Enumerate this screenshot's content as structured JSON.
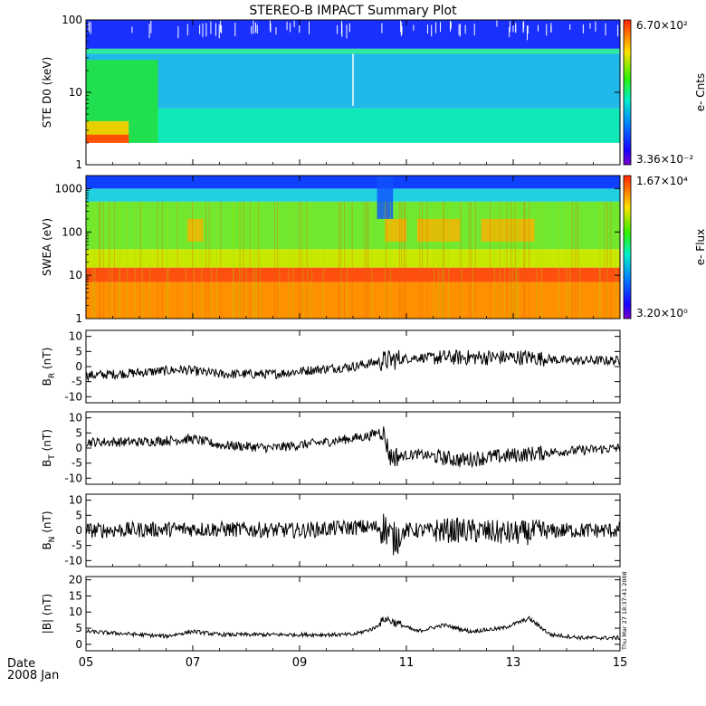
{
  "chart_data": {
    "type": "multi-panel",
    "title": "STEREO-B IMPACT Summary Plot",
    "x_axis": {
      "ticks": [
        "05",
        "07",
        "09",
        "11",
        "13",
        "15"
      ],
      "range_days": [
        "2008-01-05",
        "2008-01-15"
      ],
      "label_line1": "Date",
      "label_line2": "2008 Jan"
    },
    "timestamp": "Thu Mar 27 18:37:41 2008",
    "panels": [
      {
        "id": "ste",
        "type": "heatmap",
        "ylabel": "STE D0 (keV)",
        "yscale": "log",
        "ylim": [
          1,
          100
        ],
        "yticks": [
          "1",
          "10",
          "100"
        ],
        "colorbar_label": "e- Cnts",
        "colorbar_max": "6.70×10²",
        "colorbar_min": "3.36×10⁻²"
      },
      {
        "id": "swea",
        "type": "heatmap",
        "ylabel": "SWEA (eV)",
        "yscale": "log",
        "ylim": [
          1,
          2000
        ],
        "yticks": [
          "1",
          "10",
          "100",
          "1000"
        ],
        "colorbar_label": "e- Flux",
        "colorbar_max": "1.67×10⁴",
        "colorbar_min": "3.20×10⁰"
      },
      {
        "id": "br",
        "type": "line",
        "ylabel": "B",
        "ylabel_sub": "R",
        "ylabel_unit": " (nT)",
        "ylim": [
          -12,
          12
        ],
        "yticks": [
          "-10",
          "-5",
          "0",
          "5",
          "10"
        ],
        "trend": [
          [
            5,
            -3
          ],
          [
            6,
            -2
          ],
          [
            6.8,
            -1
          ],
          [
            7.5,
            -2.5
          ],
          [
            8.5,
            -2.5
          ],
          [
            9.3,
            -1
          ],
          [
            10,
            0
          ],
          [
            10.6,
            2
          ],
          [
            11.2,
            3
          ],
          [
            12,
            3
          ],
          [
            13.3,
            3
          ],
          [
            14,
            2
          ],
          [
            15,
            2
          ]
        ]
      },
      {
        "id": "bt",
        "type": "line",
        "ylabel": "B",
        "ylabel_sub": "T",
        "ylabel_unit": " (nT)",
        "ylim": [
          -12,
          12
        ],
        "yticks": [
          "-10",
          "-5",
          "0",
          "5",
          "10"
        ],
        "trend": [
          [
            5,
            2
          ],
          [
            6,
            2
          ],
          [
            7,
            3
          ],
          [
            7.5,
            1
          ],
          [
            8.5,
            0
          ],
          [
            9.5,
            2
          ],
          [
            10.3,
            4
          ],
          [
            10.55,
            6
          ],
          [
            10.7,
            -3
          ],
          [
            11.2,
            -2
          ],
          [
            12,
            -4
          ],
          [
            12.6,
            -3
          ],
          [
            13.3,
            -2
          ],
          [
            14,
            -1
          ],
          [
            15,
            0
          ]
        ]
      },
      {
        "id": "bn",
        "type": "line",
        "ylabel": "B",
        "ylabel_sub": "N",
        "ylabel_unit": " (nT)",
        "ylim": [
          -12,
          12
        ],
        "yticks": [
          "-10",
          "-5",
          "0",
          "5",
          "10"
        ],
        "trend": [
          [
            5,
            0
          ],
          [
            7,
            0.5
          ],
          [
            9,
            0
          ],
          [
            10,
            1
          ],
          [
            10.6,
            1
          ],
          [
            10.75,
            -3
          ],
          [
            11,
            0
          ],
          [
            12,
            0
          ],
          [
            13,
            -1
          ],
          [
            14,
            0
          ],
          [
            15,
            0
          ]
        ]
      },
      {
        "id": "bmag",
        "type": "line",
        "ylabel": "|B| (nT)",
        "ylim": [
          -2,
          21
        ],
        "yticks": [
          "0",
          "5",
          "10",
          "15",
          "20"
        ],
        "trend": [
          [
            5,
            4
          ],
          [
            6,
            3
          ],
          [
            6.5,
            2.5
          ],
          [
            7,
            4
          ],
          [
            7.5,
            3
          ],
          [
            9,
            3
          ],
          [
            10,
            3
          ],
          [
            10.4,
            5
          ],
          [
            10.6,
            8
          ],
          [
            10.9,
            6
          ],
          [
            11.2,
            4
          ],
          [
            11.7,
            6
          ],
          [
            12.2,
            4
          ],
          [
            12.8,
            5
          ],
          [
            13.3,
            8
          ],
          [
            13.7,
            3
          ],
          [
            14.3,
            2
          ],
          [
            15,
            2
          ]
        ]
      }
    ]
  }
}
